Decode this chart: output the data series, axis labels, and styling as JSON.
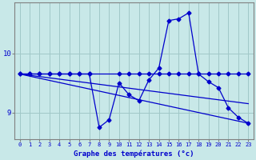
{
  "xlabel": "Graphe des températures (°c)",
  "bg_color": "#c8e8e8",
  "line_color": "#0000cc",
  "grid_color": "#a0c8c8",
  "xlim": [
    -0.5,
    23.5
  ],
  "ylim": [
    8.55,
    10.85
  ],
  "yticks": [
    9,
    10
  ],
  "xticks": [
    0,
    1,
    2,
    3,
    4,
    5,
    6,
    7,
    8,
    9,
    10,
    11,
    12,
    13,
    14,
    15,
    16,
    17,
    18,
    19,
    20,
    21,
    22,
    23
  ],
  "series1_x": [
    0,
    1,
    2,
    3,
    4,
    5,
    6,
    7,
    8,
    9,
    10,
    11,
    12,
    13,
    14,
    15,
    16,
    17,
    18,
    19,
    20,
    21,
    22,
    23
  ],
  "series1_y": [
    9.65,
    9.65,
    9.65,
    9.65,
    9.65,
    9.65,
    9.65,
    9.65,
    8.75,
    8.88,
    9.5,
    9.3,
    9.2,
    9.55,
    9.75,
    10.55,
    10.58,
    10.68,
    9.65,
    9.52,
    9.42,
    9.08,
    8.92,
    8.82
  ],
  "series2_x": [
    0,
    1,
    2,
    3,
    4,
    5,
    6,
    7,
    10,
    11,
    12,
    13,
    14,
    15,
    16,
    17,
    18,
    19,
    20,
    21,
    22,
    23
  ],
  "series2_y": [
    9.65,
    9.65,
    9.65,
    9.65,
    9.65,
    9.65,
    9.65,
    9.65,
    9.65,
    9.65,
    9.65,
    9.65,
    9.65,
    9.65,
    9.65,
    9.65,
    9.65,
    9.65,
    9.65,
    9.65,
    9.65,
    9.65
  ],
  "series3_x": [
    0,
    23
  ],
  "series3_y": [
    9.65,
    9.15
  ],
  "series4_x": [
    0,
    23
  ],
  "series4_y": [
    9.65,
    8.82
  ],
  "markersize": 2.5,
  "linewidth": 0.9
}
